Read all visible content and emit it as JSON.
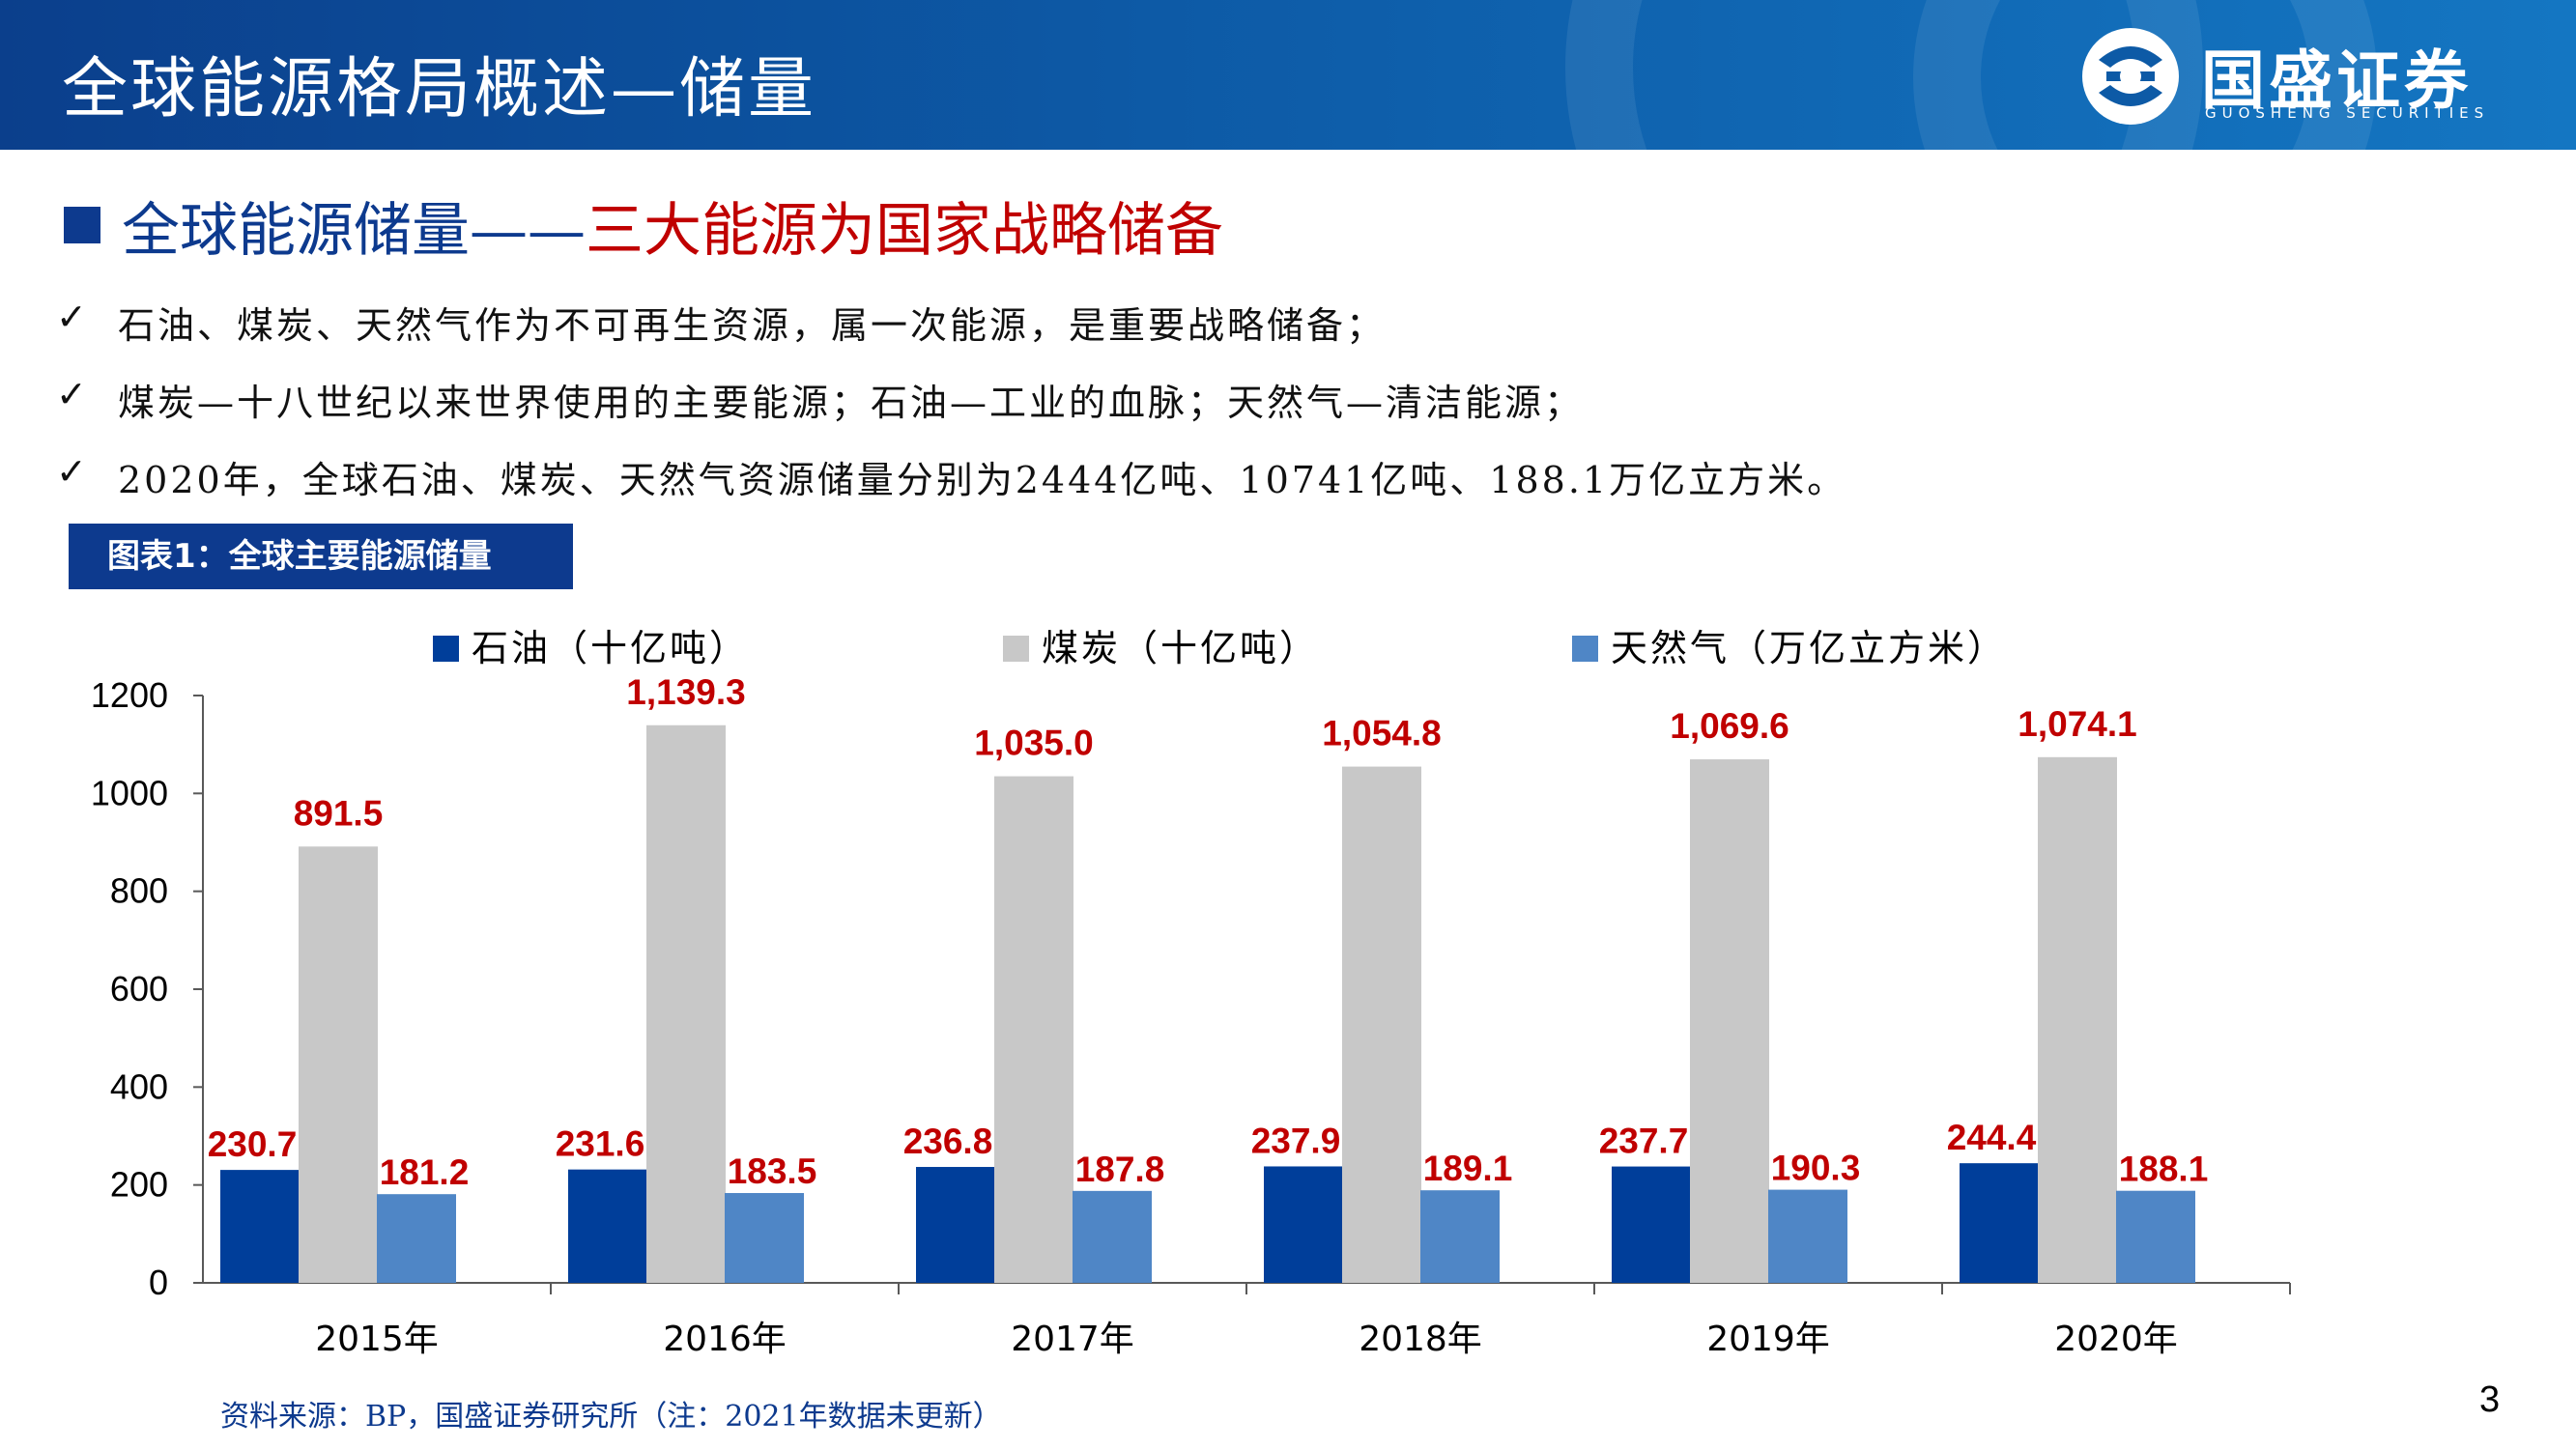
{
  "header": {
    "title": "全球能源格局概述—储量",
    "logo_cn": "国盛证券",
    "logo_en": "GUOSHENG SECURITIES"
  },
  "section": {
    "title_blue": "全球能源储量——",
    "title_red": "三大能源为国家战略储备"
  },
  "bullets": [
    "石油、煤炭、天然气作为不可再生资源，属一次能源，是重要战略储备；",
    "煤炭—十八世纪以来世界使用的主要能源；石油—工业的血脉；天然气—清洁能源；",
    "2020年，全球石油、煤炭、天然气资源储量分别为2444亿吨、10741亿吨、188.1万亿立方米。"
  ],
  "bullet_mark": "✓",
  "figure_label": "图表1：全球主要能源储量",
  "chart_data": {
    "type": "bar",
    "categories": [
      "2015年",
      "2016年",
      "2017年",
      "2018年",
      "2019年",
      "2020年"
    ],
    "series": [
      {
        "name": "石油（十亿吨）",
        "color": "#003e9a",
        "values": [
          230.7,
          231.6,
          236.8,
          237.9,
          237.7,
          244.4
        ],
        "labels": [
          "230.7",
          "231.6",
          "236.8",
          "237.9",
          "237.7",
          "244.4"
        ]
      },
      {
        "name": "煤炭（十亿吨）",
        "color": "#c8c8c8",
        "values": [
          891.5,
          1139.3,
          1035.0,
          1054.8,
          1069.6,
          1074.1
        ],
        "labels": [
          "891.5",
          "1,139.3",
          "1,035.0",
          "1,054.8",
          "1,069.6",
          "1,074.1"
        ]
      },
      {
        "name": "天然气（万亿立方米）",
        "color": "#4f86c6",
        "values": [
          181.2,
          183.5,
          187.8,
          189.1,
          190.3,
          188.1
        ],
        "labels": [
          "181.2",
          "183.5",
          "187.8",
          "189.1",
          "190.3",
          "188.1"
        ]
      }
    ],
    "ylim": [
      0,
      1200
    ],
    "yticks": [
      "0",
      "200",
      "400",
      "600",
      "800",
      "1000",
      "1200"
    ],
    "label_color": "#c00000",
    "legend": "top",
    "grid": false
  },
  "footer": {
    "source": "资料来源：BP，国盛证券研究所（注：2021年数据未更新）",
    "page": "3"
  }
}
